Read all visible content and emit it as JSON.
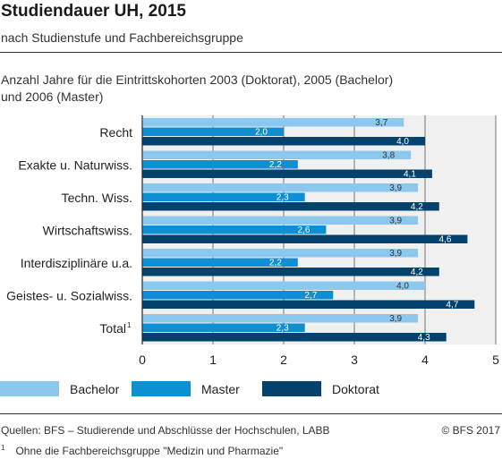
{
  "header": {
    "title": "Studiendauer UH, 2015",
    "subtitle": "nach Studienstufe und Fachbereichsgruppe"
  },
  "description": {
    "line1": "Anzahl Jahre für die Eintrittskohorten 2003 (Doktorat), 2005 (Bachelor)",
    "line2": "und 2006 (Master)"
  },
  "footer": {
    "source": "Quellen: BFS – Studierende und Abschlüsse der Hochschulen, LABB",
    "copyright": "© BFS 2017",
    "footnote_mark": "1",
    "footnote": "Ohne die Fachbereichsgruppe \"Medizin und Pharmazie\""
  },
  "colors": {
    "bachelor": "#8cc7ee",
    "master": "#0f8fd3",
    "doktorat": "#04426e",
    "plot_bg": "#f0f0f0",
    "grid": "#555555"
  },
  "chart_data": {
    "type": "bar",
    "orientation": "horizontal",
    "categories": [
      "Recht",
      "Exakte u. Naturwiss.",
      "Techn. Wiss.",
      "Wirtschaftswiss.",
      "Interdisziplinäre  u.a.",
      "Geistes- u. Sozialwiss.",
      "Total"
    ],
    "category_footnotes": [
      "",
      "",
      "",
      "",
      "",
      "",
      "1"
    ],
    "series": [
      {
        "name": "Bachelor",
        "values": [
          3.7,
          3.8,
          3.9,
          3.9,
          3.9,
          4.0,
          3.9
        ],
        "labels": [
          "3,7",
          "3,8",
          "3,9",
          "3,9",
          "3,9",
          "4,0",
          "3,9"
        ]
      },
      {
        "name": "Master",
        "values": [
          2.0,
          2.2,
          2.3,
          2.6,
          2.2,
          2.7,
          2.3
        ],
        "labels": [
          "2,0",
          "2,2",
          "2,3",
          "2,6",
          "2,2",
          "2,7",
          "2,3"
        ]
      },
      {
        "name": "Doktorat",
        "values": [
          4.0,
          4.1,
          4.2,
          4.6,
          4.2,
          4.7,
          4.3
        ],
        "labels": [
          "4,0",
          "4,1",
          "4,2",
          "4,6",
          "4,2",
          "4,7",
          "4,3"
        ]
      }
    ],
    "xlim": [
      0,
      5
    ],
    "xticks": [
      "0",
      "1",
      "2",
      "3",
      "4",
      "5"
    ],
    "grid": true,
    "legend_placement": "bottom"
  }
}
